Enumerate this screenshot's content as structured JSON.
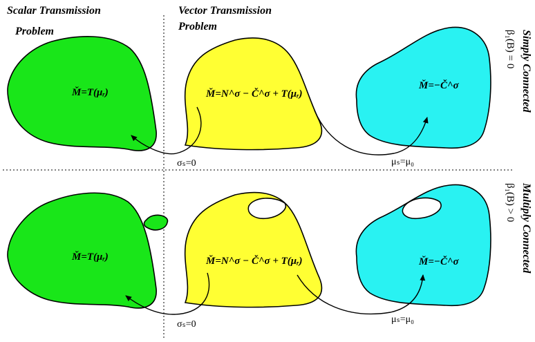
{
  "headers": {
    "scalar_line1": "Scalar Transmission",
    "scalar_line2": "Problem",
    "vector_line1": "Vector Transmission",
    "vector_line2": "Problem"
  },
  "rows": {
    "simply_title": "Simply Connected",
    "simply_condition": "β₁(B) = 0",
    "multiply_title": "Multiply Connected",
    "multiply_condition": "β₁(B) > 0"
  },
  "equations": {
    "scalar": "M̌=T(μᵣ)",
    "vector": "M̌=N^σ − Č^σ + T(μᵣ)",
    "cyan": "M̌=−Č^σ"
  },
  "labels": {
    "sigma": "σₛ=0",
    "mu": "μₛ=μ₀"
  },
  "colors": {
    "green": "#19e619",
    "yellow": "#ffff33",
    "cyan": "#29f2f2"
  }
}
